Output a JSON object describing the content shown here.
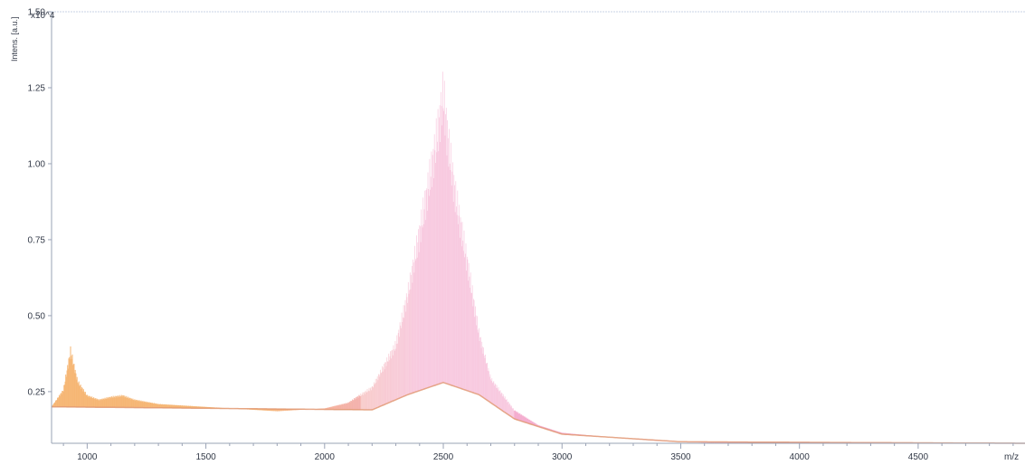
{
  "chart_data": {
    "type": "line",
    "ylabel": "Intens. [a.u.]",
    "y_multiplier": "x10^4",
    "xlabel": "m/z",
    "xlim": [
      850,
      4950
    ],
    "ylim": [
      0.08,
      1.5
    ],
    "x_ticks": [
      1000,
      1500,
      2000,
      2500,
      3000,
      3500,
      4000,
      4500
    ],
    "y_ticks": [
      0.25,
      0.5,
      0.75,
      1.0,
      1.25,
      1.5
    ],
    "y_tick_labels": [
      "0.25",
      "0.50",
      "0.75",
      "1.00",
      "1.25",
      "1.50"
    ],
    "grid": false,
    "series": [
      {
        "color_low": "#f5b26b",
        "color_high": "#f4a8cc",
        "envelope": [
          {
            "x": 850,
            "y": 0.2
          },
          {
            "x": 900,
            "y": 0.26
          },
          {
            "x": 930,
            "y": 0.4
          },
          {
            "x": 960,
            "y": 0.29
          },
          {
            "x": 1000,
            "y": 0.24
          },
          {
            "x": 1050,
            "y": 0.225
          },
          {
            "x": 1100,
            "y": 0.235
          },
          {
            "x": 1150,
            "y": 0.24
          },
          {
            "x": 1200,
            "y": 0.225
          },
          {
            "x": 1300,
            "y": 0.21
          },
          {
            "x": 1400,
            "y": 0.205
          },
          {
            "x": 1500,
            "y": 0.2
          },
          {
            "x": 1600,
            "y": 0.195
          },
          {
            "x": 1700,
            "y": 0.19
          },
          {
            "x": 1800,
            "y": 0.185
          },
          {
            "x": 1900,
            "y": 0.19
          },
          {
            "x": 2000,
            "y": 0.195
          },
          {
            "x": 2100,
            "y": 0.215
          },
          {
            "x": 2200,
            "y": 0.27
          },
          {
            "x": 2300,
            "y": 0.42
          },
          {
            "x": 2350,
            "y": 0.6
          },
          {
            "x": 2400,
            "y": 0.82
          },
          {
            "x": 2450,
            "y": 1.05
          },
          {
            "x": 2480,
            "y": 1.2
          },
          {
            "x": 2500,
            "y": 1.32
          },
          {
            "x": 2520,
            "y": 1.15
          },
          {
            "x": 2550,
            "y": 0.96
          },
          {
            "x": 2600,
            "y": 0.72
          },
          {
            "x": 2650,
            "y": 0.46
          },
          {
            "x": 2700,
            "y": 0.3
          },
          {
            "x": 2800,
            "y": 0.19
          },
          {
            "x": 2900,
            "y": 0.14
          },
          {
            "x": 3000,
            "y": 0.115
          },
          {
            "x": 3200,
            "y": 0.1
          },
          {
            "x": 3400,
            "y": 0.088
          },
          {
            "x": 3600,
            "y": 0.082
          },
          {
            "x": 4000,
            "y": 0.08
          },
          {
            "x": 4950,
            "y": 0.08
          }
        ],
        "baseline": [
          {
            "x": 850,
            "y": 0.2
          },
          {
            "x": 2200,
            "y": 0.19
          },
          {
            "x": 2350,
            "y": 0.24
          },
          {
            "x": 2500,
            "y": 0.28
          },
          {
            "x": 2650,
            "y": 0.24
          },
          {
            "x": 2800,
            "y": 0.16
          },
          {
            "x": 3000,
            "y": 0.11
          },
          {
            "x": 3500,
            "y": 0.085
          },
          {
            "x": 4950,
            "y": 0.08
          }
        ]
      }
    ]
  }
}
